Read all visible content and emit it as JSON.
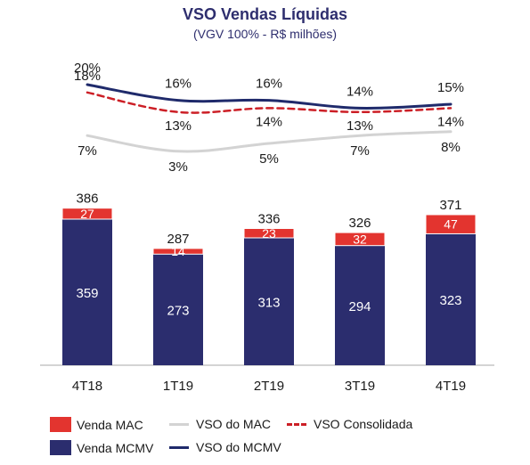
{
  "chart_data": {
    "type": "bar",
    "title": "VSO Vendas Líquidas",
    "subtitle": "(VGV 100% - R$ milhões)",
    "categories": [
      "4T18",
      "1T19",
      "2T19",
      "3T19",
      "4T19"
    ],
    "bar_series": [
      {
        "name": "Venda MCMV",
        "values": [
          359,
          273,
          313,
          294,
          323
        ],
        "color": "#2b2d6e"
      },
      {
        "name": "Venda MAC",
        "values": [
          27,
          14,
          23,
          32,
          47
        ],
        "color": "#e3342f"
      }
    ],
    "totals": [
      386,
      287,
      336,
      326,
      371
    ],
    "line_series": [
      {
        "name": "VSO do MCMV",
        "values": [
          20,
          16,
          16,
          14,
          15
        ],
        "labels": [
          "20%",
          "16%",
          "16%",
          "14%",
          "15%"
        ],
        "color": "#1f2a6b",
        "style": "solid"
      },
      {
        "name": "VSO Consolidada",
        "values": [
          18,
          13,
          14,
          13,
          14
        ],
        "labels": [
          "18%",
          "13%",
          "14%",
          "13%",
          "14%"
        ],
        "color": "#cc1f26",
        "style": "dashed"
      },
      {
        "name": "VSO do MAC",
        "values": [
          7,
          3,
          5,
          7,
          8
        ],
        "labels": [
          "7%",
          "3%",
          "5%",
          "7%",
          "8%"
        ],
        "color": "#d3d3d3",
        "style": "solid"
      }
    ],
    "legend": [
      {
        "name": "Venda MAC",
        "kind": "box",
        "color": "#e3342f"
      },
      {
        "name": "VSO do MAC",
        "kind": "line",
        "color": "#d3d3d3"
      },
      {
        "name": "VSO Consolidada",
        "kind": "dashed",
        "color": "#cc1f26"
      },
      {
        "name": "Venda MCMV",
        "kind": "box",
        "color": "#2b2d6e"
      },
      {
        "name": "VSO do MCMV",
        "kind": "line",
        "color": "#1f2a6b"
      }
    ],
    "legend_position": "bottom-left"
  }
}
